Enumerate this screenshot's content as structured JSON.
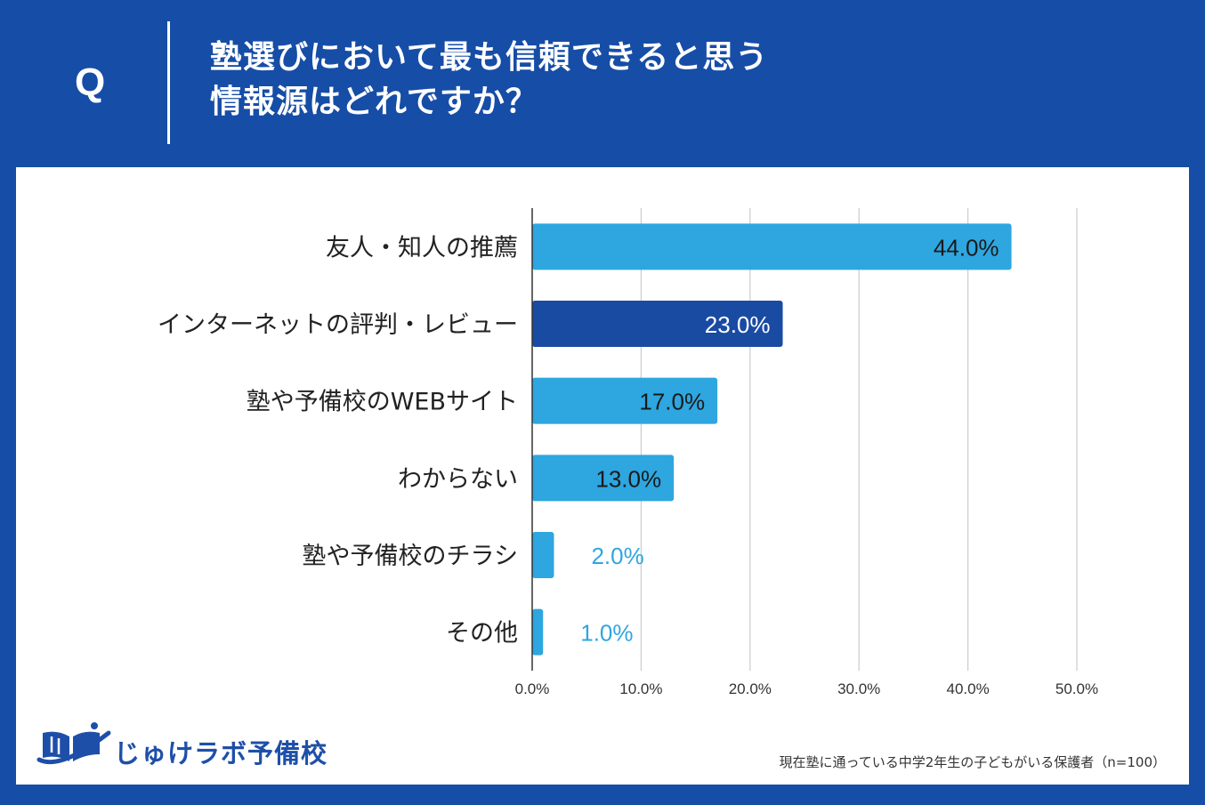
{
  "header": {
    "q_mark": "Q",
    "title_line1": "塾選びにおいて最も信頼できると思う",
    "title_line2": "情報源はどれですか？"
  },
  "brand": {
    "name": "じゅけラボ予備校",
    "primary_color": "#164da6",
    "logo_color": "#1e4fa8"
  },
  "footnote": "現在塾に通っている中学2年生の子どもがいる保護者（n=100）",
  "colors": {
    "bar": "#2ea6e0",
    "bar_highlight": "#1a4ba3",
    "grid": "#cccccc",
    "axis": "#333333"
  },
  "chart_data": {
    "type": "bar",
    "orientation": "horizontal",
    "title": "塾選びにおいて最も信頼できると思う情報源はどれですか？",
    "categories": [
      "友人・知人の推薦",
      "インターネットの評判・レビュー",
      "塾や予備校のWEBサイト",
      "わからない",
      "塾や予備校のチラシ",
      "その他"
    ],
    "values": [
      44.0,
      23.0,
      17.0,
      13.0,
      2.0,
      1.0
    ],
    "value_labels": [
      "44.0%",
      "23.0%",
      "17.0%",
      "13.0%",
      "2.0%",
      "1.0%"
    ],
    "highlight_index": 1,
    "xlim": [
      0,
      50
    ],
    "xticks": [
      0,
      10,
      20,
      30,
      40,
      50
    ],
    "xtick_labels": [
      "0.0%",
      "10.0%",
      "20.0%",
      "30.0%",
      "40.0%",
      "50.0%"
    ],
    "grid": true,
    "unit": "%"
  }
}
